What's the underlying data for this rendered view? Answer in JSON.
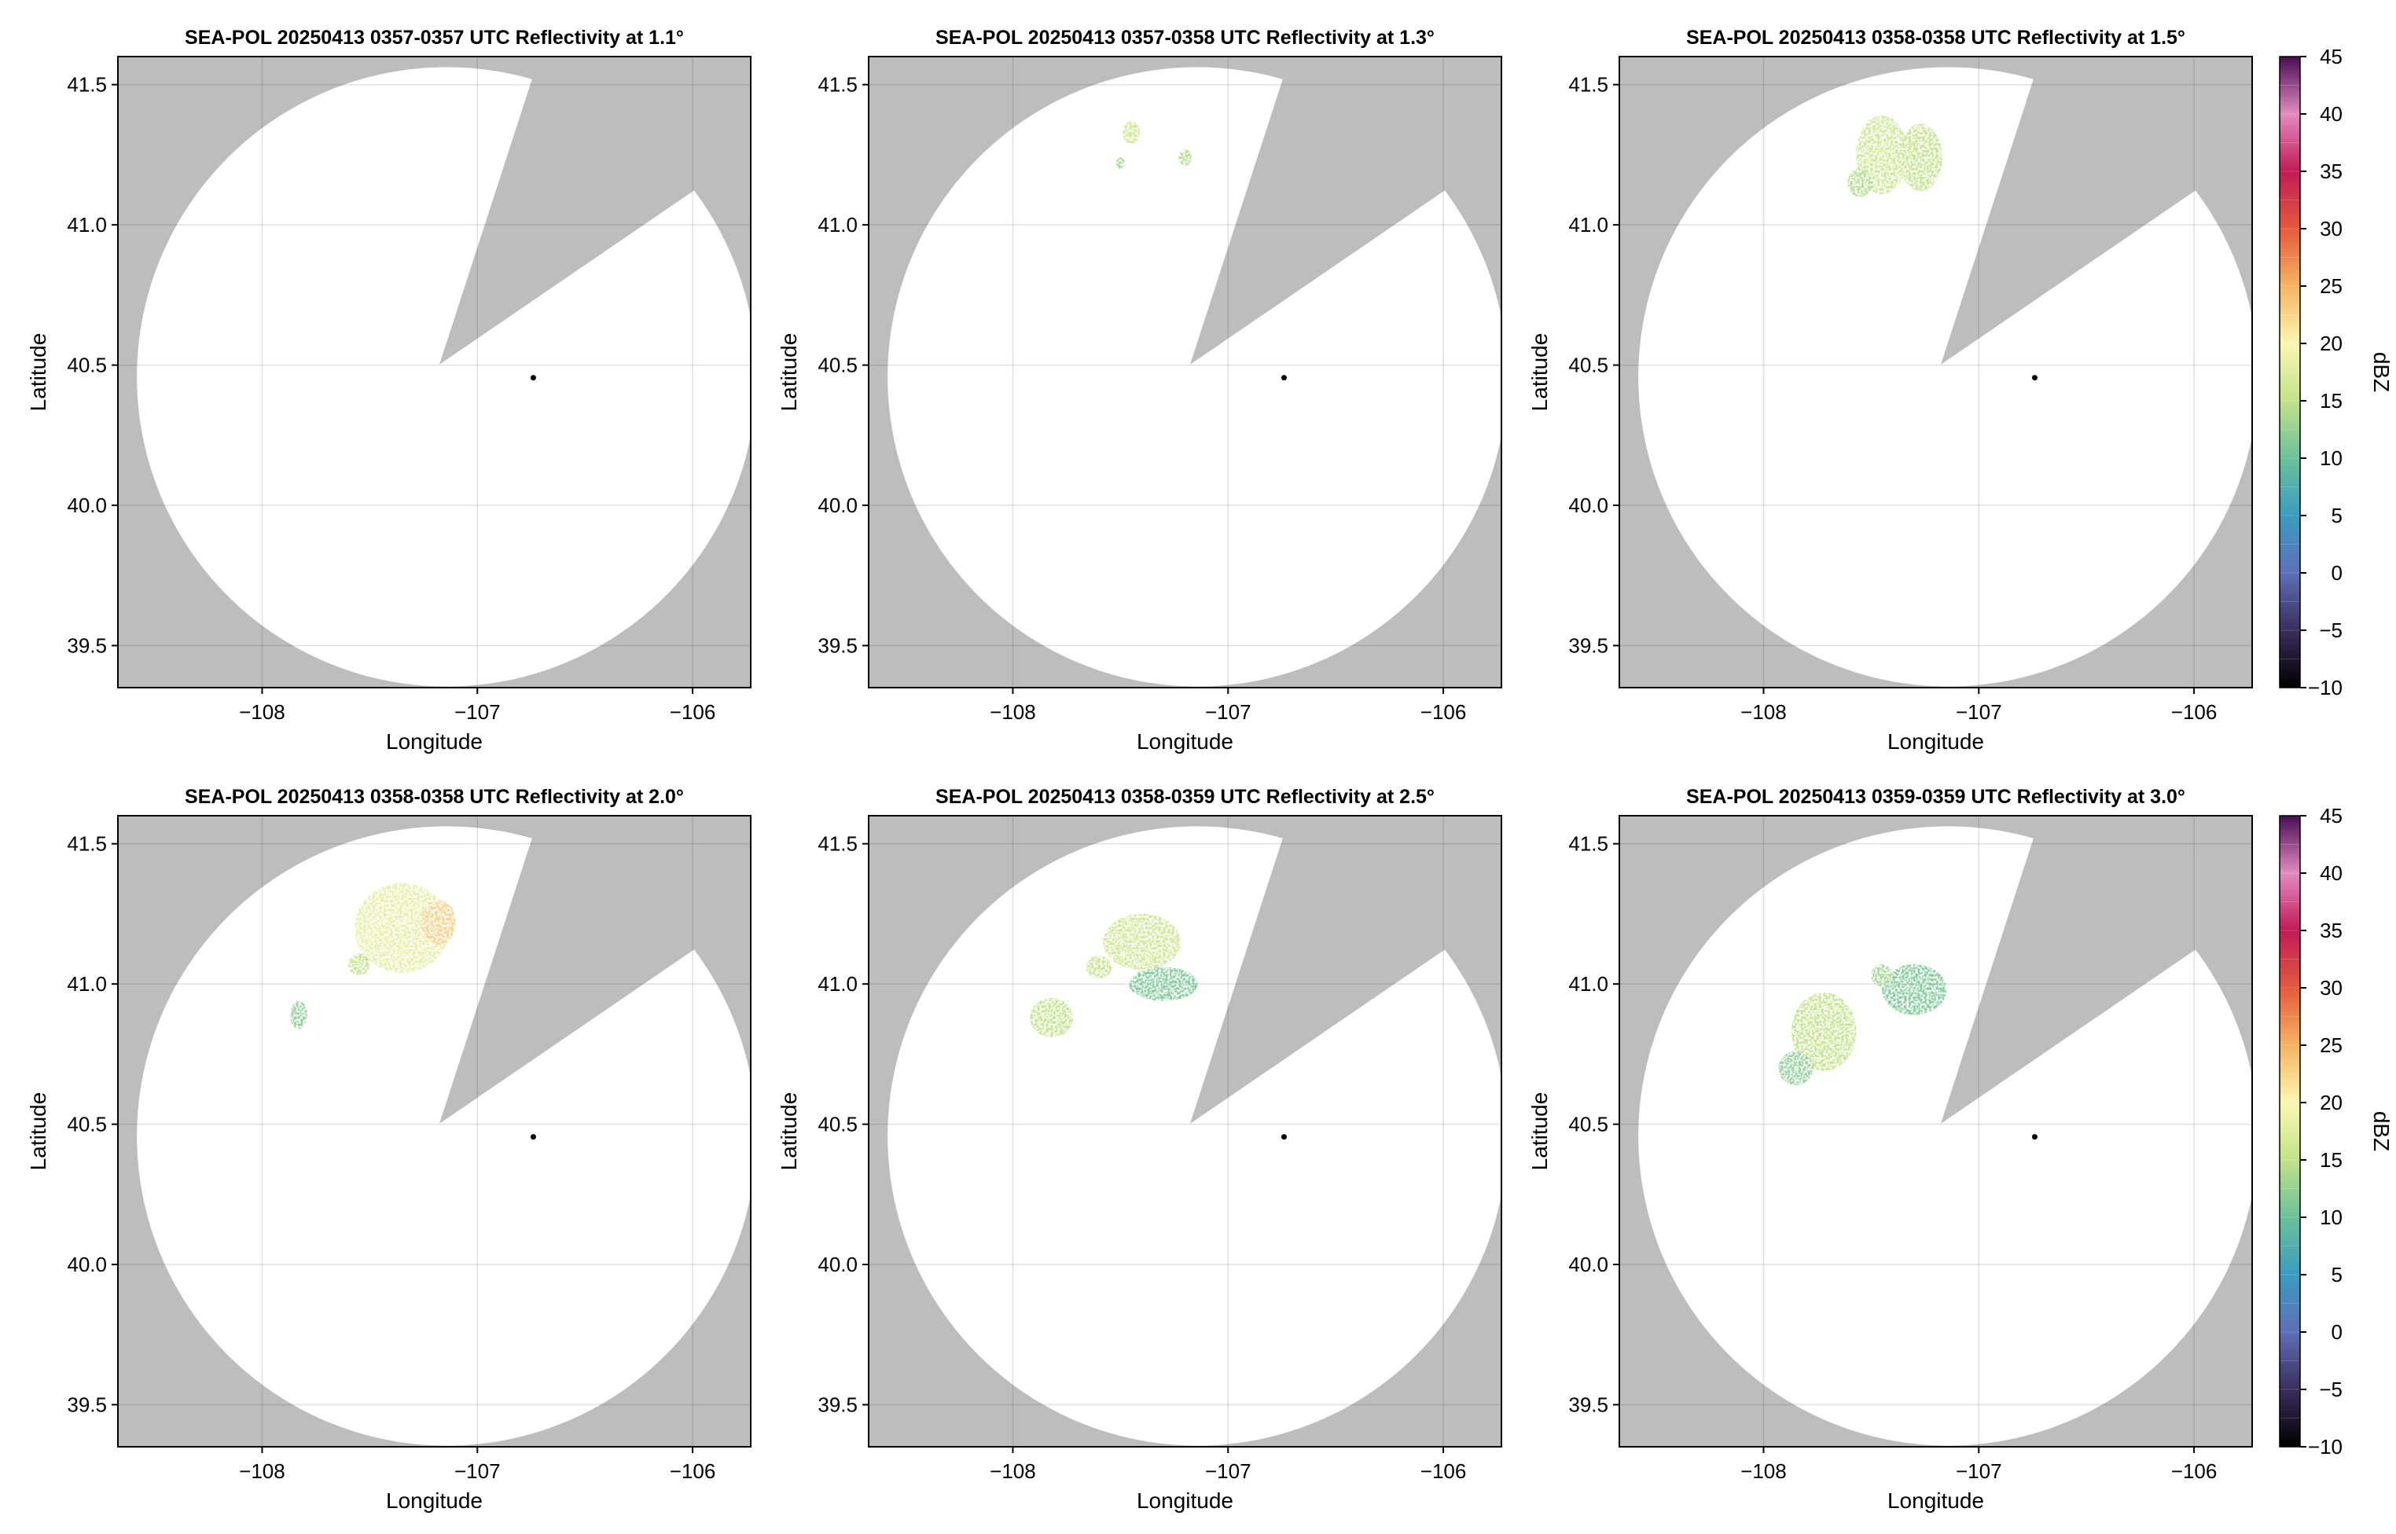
{
  "figure": {
    "colorbar_label": "dBZ",
    "colorbar_ticks": [
      -10,
      -5,
      0,
      5,
      10,
      15,
      20,
      25,
      30,
      35,
      40,
      45
    ],
    "colorbar_range": [
      -10,
      45
    ],
    "colormap_colors": [
      "#000000",
      "#3a2e5c",
      "#5e6fb8",
      "#3a9cc0",
      "#6cc19a",
      "#c2e389",
      "#fbf7b2",
      "#f6b464",
      "#e55a3c",
      "#c21a55",
      "#e28bc0",
      "#4a0d55"
    ],
    "mask_color": "#bdbdbd",
    "radar_marker_color": "#000000"
  },
  "chart_data": [
    {
      "type": "heatmap",
      "title": "SEA-POL 20250413 0357-0357 UTC Reflectivity at 1.1°",
      "xlabel": "Longitude",
      "ylabel": "Latitude",
      "xlim": [
        -108.67,
        -105.73
      ],
      "ylim": [
        39.35,
        41.6
      ],
      "xticks": [
        -108,
        -107,
        -106
      ],
      "yticks": [
        39.5,
        40.0,
        40.5,
        41.0,
        41.5
      ],
      "xtick_labels": [
        "−108",
        "−107",
        "−106"
      ],
      "ytick_labels": [
        "39.5",
        "40.0",
        "40.5",
        "41.0",
        "41.5"
      ],
      "grid": true,
      "radar_location": [
        -106.74,
        40.455
      ],
      "echo_regions": []
    },
    {
      "type": "heatmap",
      "title": "SEA-POL 20250413 0357-0358 UTC Reflectivity at 1.3°",
      "xlabel": "Longitude",
      "ylabel": "Latitude",
      "xlim": [
        -108.67,
        -105.73
      ],
      "ylim": [
        39.35,
        41.6
      ],
      "xticks": [
        -108,
        -107,
        -106
      ],
      "yticks": [
        39.5,
        40.0,
        40.5,
        41.0,
        41.5
      ],
      "xtick_labels": [
        "−108",
        "−107",
        "−106"
      ],
      "ytick_labels": [
        "39.5",
        "40.0",
        "40.5",
        "41.0",
        "41.5"
      ],
      "grid": true,
      "radar_location": [
        -106.74,
        40.455
      ],
      "echo_regions": [
        {
          "lon": -107.45,
          "lat": 41.33,
          "rlon": 0.04,
          "rlat": 0.04,
          "dbz": 16
        },
        {
          "lon": -107.2,
          "lat": 41.24,
          "rlon": 0.03,
          "rlat": 0.03,
          "dbz": 14
        },
        {
          "lon": -107.5,
          "lat": 41.22,
          "rlon": 0.02,
          "rlat": 0.02,
          "dbz": 13
        }
      ]
    },
    {
      "type": "heatmap",
      "title": "SEA-POL 20250413 0358-0358 UTC Reflectivity at 1.5°",
      "xlabel": "Longitude",
      "ylabel": "Latitude",
      "xlim": [
        -108.67,
        -105.73
      ],
      "ylim": [
        39.35,
        41.6
      ],
      "xticks": [
        -108,
        -107,
        -106
      ],
      "yticks": [
        39.5,
        40.0,
        40.5,
        41.0,
        41.5
      ],
      "xtick_labels": [
        "−108",
        "−107",
        "−106"
      ],
      "ytick_labels": [
        "39.5",
        "40.0",
        "40.5",
        "41.0",
        "41.5"
      ],
      "grid": true,
      "radar_location": [
        -106.74,
        40.455
      ],
      "echo_regions": [
        {
          "lon": -107.45,
          "lat": 41.25,
          "rlon": 0.12,
          "rlat": 0.14,
          "dbz": 16
        },
        {
          "lon": -107.27,
          "lat": 41.24,
          "rlon": 0.1,
          "rlat": 0.12,
          "dbz": 15
        },
        {
          "lon": -107.55,
          "lat": 41.15,
          "rlon": 0.06,
          "rlat": 0.05,
          "dbz": 14
        }
      ]
    },
    {
      "type": "heatmap",
      "title": "SEA-POL 20250413 0358-0358 UTC Reflectivity at 2.0°",
      "xlabel": "Longitude",
      "ylabel": "Latitude",
      "xlim": [
        -108.67,
        -105.73
      ],
      "ylim": [
        39.35,
        41.6
      ],
      "xticks": [
        -108,
        -107,
        -106
      ],
      "yticks": [
        39.5,
        40.0,
        40.5,
        41.0,
        41.5
      ],
      "xtick_labels": [
        "−108",
        "−107",
        "−106"
      ],
      "ytick_labels": [
        "39.5",
        "40.0",
        "40.5",
        "41.0",
        "41.5"
      ],
      "grid": true,
      "radar_location": [
        -106.74,
        40.455
      ],
      "echo_regions": [
        {
          "lon": -107.35,
          "lat": 41.2,
          "rlon": 0.22,
          "rlat": 0.16,
          "dbz": 18
        },
        {
          "lon": -107.18,
          "lat": 41.22,
          "rlon": 0.08,
          "rlat": 0.08,
          "dbz": 23
        },
        {
          "lon": -107.55,
          "lat": 41.07,
          "rlon": 0.05,
          "rlat": 0.04,
          "dbz": 15
        },
        {
          "lon": -107.83,
          "lat": 40.89,
          "rlon": 0.04,
          "rlat": 0.05,
          "dbz": 12
        }
      ]
    },
    {
      "type": "heatmap",
      "title": "SEA-POL 20250413 0358-0359 UTC Reflectivity at 2.5°",
      "xlabel": "Longitude",
      "ylabel": "Latitude",
      "xlim": [
        -108.67,
        -105.73
      ],
      "ylim": [
        39.35,
        41.6
      ],
      "xticks": [
        -108,
        -107,
        -106
      ],
      "yticks": [
        39.5,
        40.0,
        40.5,
        41.0,
        41.5
      ],
      "xtick_labels": [
        "−108",
        "−107",
        "−106"
      ],
      "ytick_labels": [
        "39.5",
        "40.0",
        "40.5",
        "41.0",
        "41.5"
      ],
      "grid": true,
      "radar_location": [
        -106.74,
        40.455
      ],
      "echo_regions": [
        {
          "lon": -107.4,
          "lat": 41.15,
          "rlon": 0.18,
          "rlat": 0.1,
          "dbz": 16
        },
        {
          "lon": -107.3,
          "lat": 41.0,
          "rlon": 0.16,
          "rlat": 0.06,
          "dbz": 11
        },
        {
          "lon": -107.6,
          "lat": 41.06,
          "rlon": 0.06,
          "rlat": 0.04,
          "dbz": 15
        },
        {
          "lon": -107.82,
          "lat": 40.88,
          "rlon": 0.1,
          "rlat": 0.07,
          "dbz": 15
        }
      ]
    },
    {
      "type": "heatmap",
      "title": "SEA-POL 20250413 0359-0359 UTC Reflectivity at 3.0°",
      "xlabel": "Longitude",
      "ylabel": "Latitude",
      "xlim": [
        -108.67,
        -105.73
      ],
      "ylim": [
        39.35,
        41.6
      ],
      "xticks": [
        -108,
        -107,
        -106
      ],
      "yticks": [
        39.5,
        40.0,
        40.5,
        41.0,
        41.5
      ],
      "xtick_labels": [
        "−108",
        "−107",
        "−106"
      ],
      "ytick_labels": [
        "39.5",
        "40.0",
        "40.5",
        "41.0",
        "41.5"
      ],
      "grid": true,
      "radar_location": [
        -106.74,
        40.455
      ],
      "echo_regions": [
        {
          "lon": -107.72,
          "lat": 40.83,
          "rlon": 0.15,
          "rlat": 0.14,
          "dbz": 15
        },
        {
          "lon": -107.85,
          "lat": 40.7,
          "rlon": 0.08,
          "rlat": 0.06,
          "dbz": 12
        },
        {
          "lon": -107.3,
          "lat": 40.98,
          "rlon": 0.15,
          "rlat": 0.09,
          "dbz": 11
        },
        {
          "lon": -107.45,
          "lat": 41.03,
          "rlon": 0.05,
          "rlat": 0.04,
          "dbz": 13
        }
      ]
    }
  ]
}
